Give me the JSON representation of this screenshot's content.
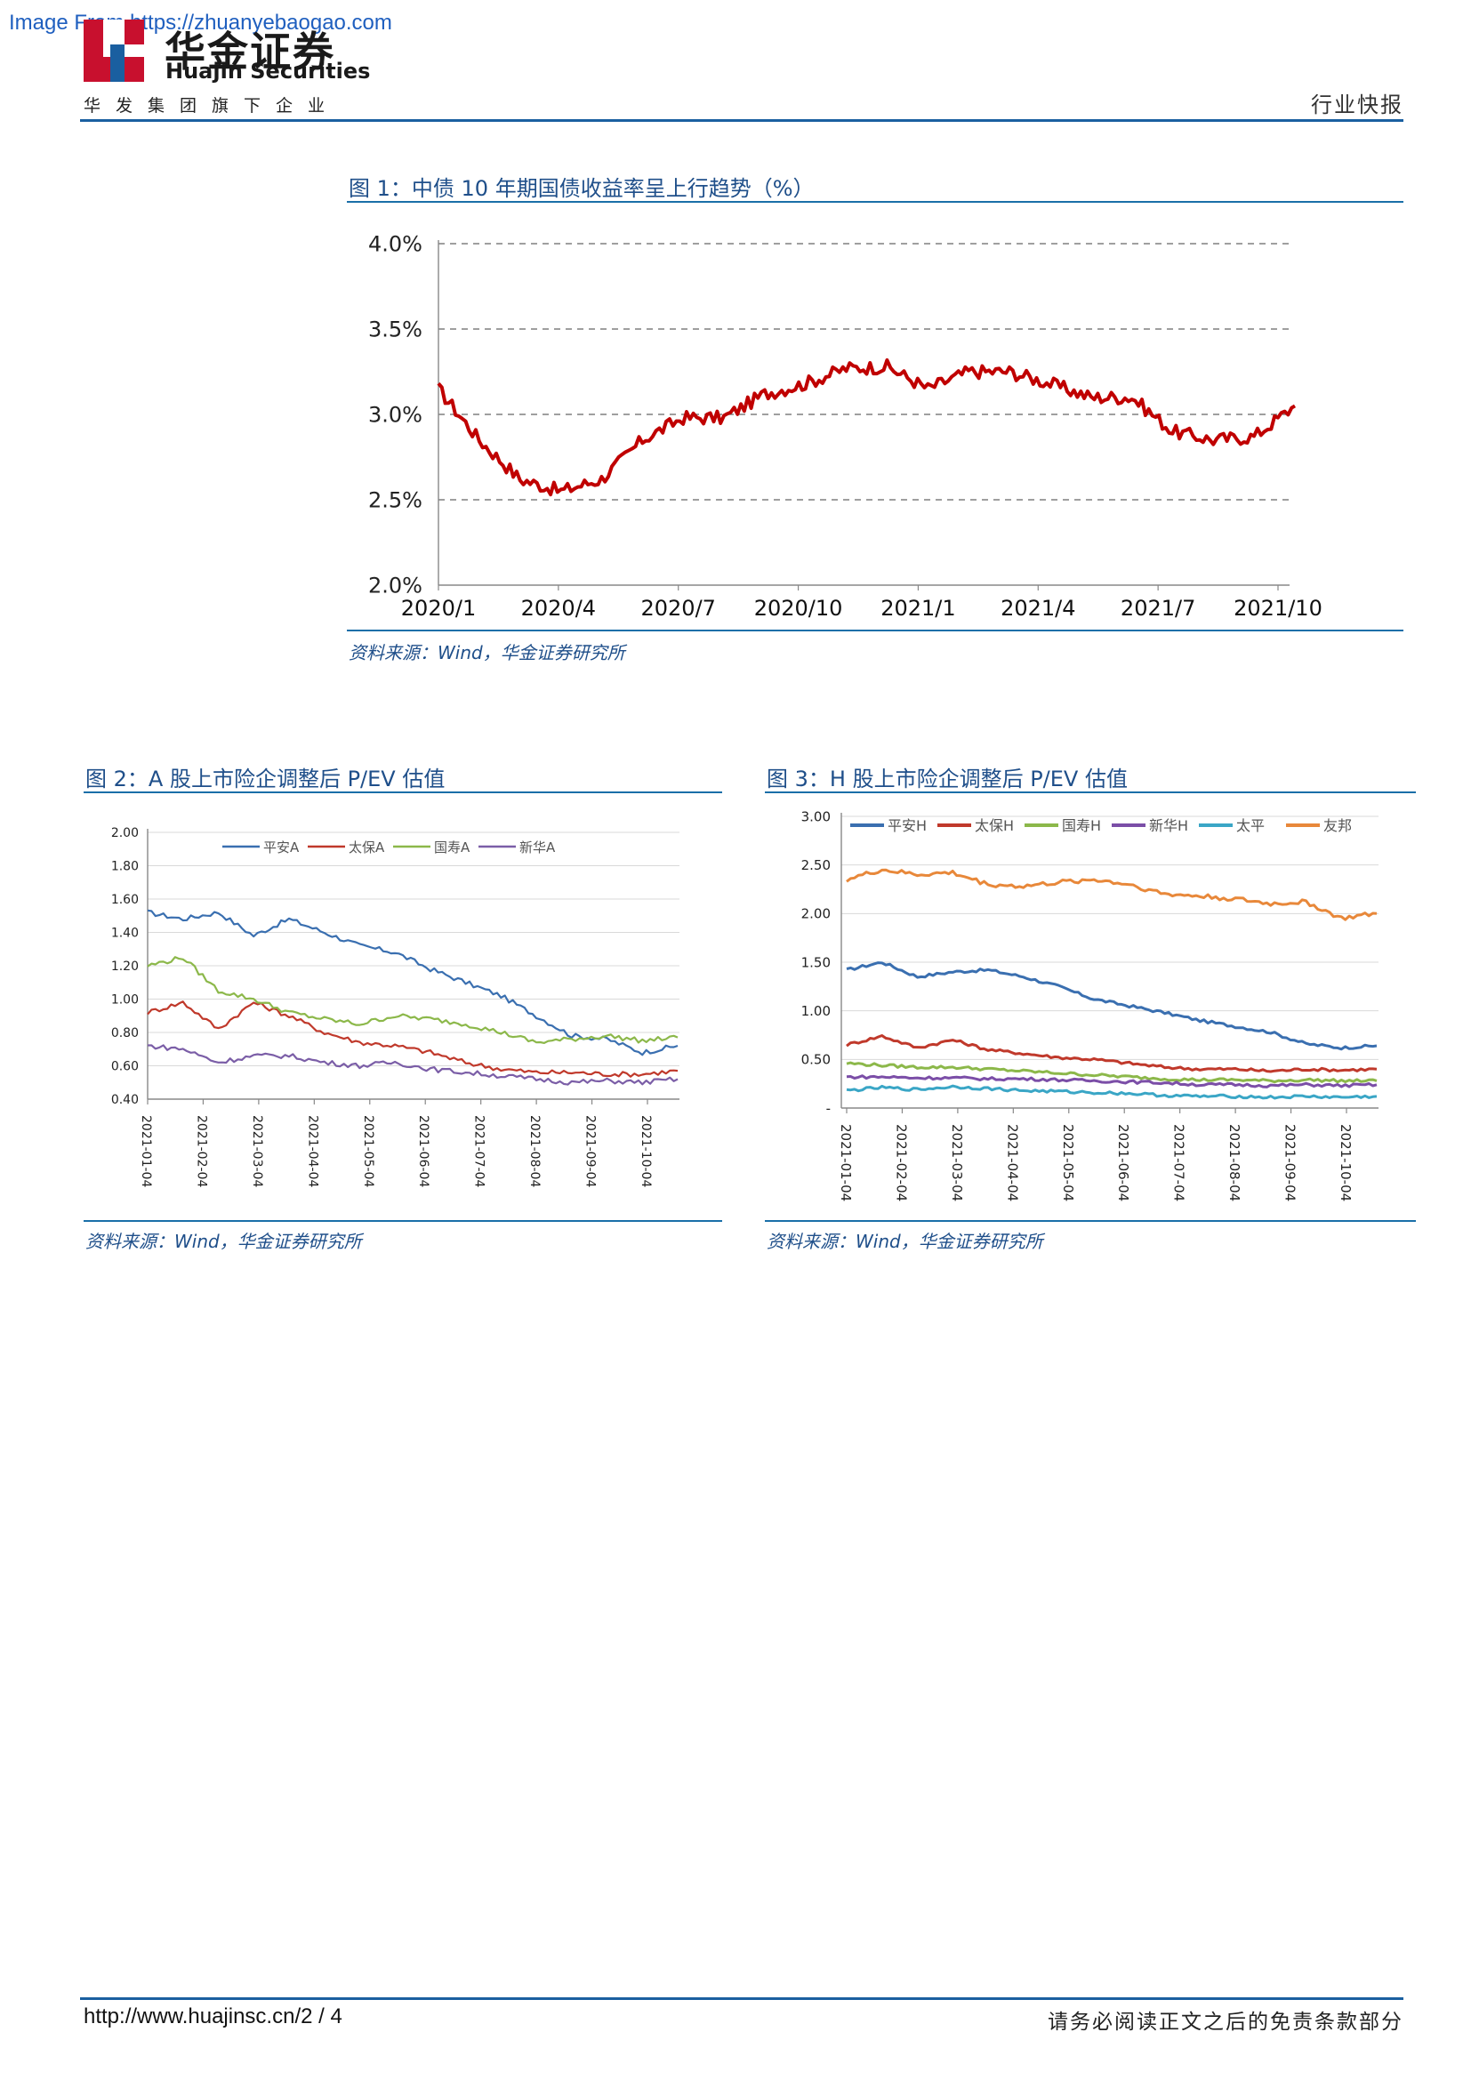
{
  "header": {
    "watermark": "Image From https://zhuanyebaogao.com",
    "logo_cn": "华金证券",
    "logo_en": "Huajin Securities",
    "logo_sub": "华发集团旗下企业",
    "report_type": "行业快报",
    "brand_red": "#c8102e",
    "brand_blue": "#1a5fa0"
  },
  "figures": {
    "fig1": {
      "title": "图 1：中债 10 年期国债收益率呈上行趋势（%）",
      "source": "资料来源：Wind，华金证券研究所"
    },
    "fig2": {
      "title": "图 2：A 股上市险企调整后 P/EV 估值",
      "source": "资料来源：Wind，华金证券研究所"
    },
    "fig3": {
      "title": "图 3：H 股上市险企调整后 P/EV 估值",
      "source": "资料来源：Wind，华金证券研究所"
    }
  },
  "chart_data": [
    {
      "id": "fig1",
      "type": "line",
      "x_ticks": [
        "2020/1",
        "2020/4",
        "2020/7",
        "2020/10",
        "2021/1",
        "2021/4",
        "2021/7",
        "2021/10"
      ],
      "y_ticks": [
        "2.0%",
        "2.5%",
        "3.0%",
        "3.5%",
        "4.0%"
      ],
      "ylim": [
        2.0,
        4.0
      ],
      "grid": "horizontal dashed",
      "series": [
        {
          "color": "#c00000",
          "x": [
            "2020-01",
            "2020-02",
            "2020-03",
            "2020-04",
            "2020-05",
            "2020-06",
            "2020-07",
            "2020-08",
            "2020-09",
            "2020-10",
            "2020-11",
            "2020-12",
            "2021-01",
            "2021-02",
            "2021-03",
            "2021-04",
            "2021-05",
            "2021-06",
            "2021-07",
            "2021-08",
            "2021-09",
            "2021-10"
          ],
          "values": [
            3.15,
            2.85,
            2.62,
            2.55,
            2.62,
            2.85,
            2.98,
            2.98,
            3.12,
            3.18,
            3.27,
            3.28,
            3.15,
            3.25,
            3.25,
            3.18,
            3.1,
            3.1,
            2.9,
            2.85,
            2.87,
            3.05
          ]
        }
      ]
    },
    {
      "id": "fig2",
      "type": "line",
      "x_ticks": [
        "2021-01-04",
        "2021-02-04",
        "2021-03-04",
        "2021-04-04",
        "2021-05-04",
        "2021-06-04",
        "2021-07-04",
        "2021-08-04",
        "2021-09-04",
        "2021-10-04"
      ],
      "y_ticks": [
        "0.40",
        "0.60",
        "0.80",
        "1.00",
        "1.20",
        "1.40",
        "1.60",
        "1.80",
        "2.00"
      ],
      "ylim": [
        0.4,
        2.0
      ],
      "legend": "top",
      "series": [
        {
          "name": "平安A",
          "color": "#3a6fb0",
          "values": [
            1.52,
            1.48,
            1.52,
            1.38,
            1.48,
            1.4,
            1.32,
            1.28,
            1.18,
            1.1,
            1.02,
            0.9,
            0.78,
            0.76,
            0.68,
            0.72
          ]
        },
        {
          "name": "太保A",
          "color": "#c0392b",
          "values": [
            0.92,
            0.98,
            0.82,
            0.98,
            0.9,
            0.8,
            0.74,
            0.72,
            0.68,
            0.62,
            0.58,
            0.56,
            0.56,
            0.55,
            0.55,
            0.57
          ]
        },
        {
          "name": "国寿A",
          "color": "#8cb84a",
          "values": [
            1.2,
            1.25,
            1.05,
            1.0,
            0.92,
            0.88,
            0.85,
            0.9,
            0.88,
            0.85,
            0.8,
            0.74,
            0.76,
            0.78,
            0.75,
            0.77
          ]
        },
        {
          "name": "新华A",
          "color": "#7b5ea7",
          "values": [
            0.72,
            0.7,
            0.62,
            0.66,
            0.66,
            0.62,
            0.6,
            0.62,
            0.58,
            0.56,
            0.54,
            0.52,
            0.5,
            0.51,
            0.5,
            0.52
          ]
        }
      ]
    },
    {
      "id": "fig3",
      "type": "line",
      "x_ticks": [
        "2021-01-04",
        "2021-02-04",
        "2021-03-04",
        "2021-04-04",
        "2021-05-04",
        "2021-06-04",
        "2021-07-04",
        "2021-08-04",
        "2021-09-04",
        "2021-10-04"
      ],
      "y_ticks": [
        "-",
        "0.50",
        "1.00",
        "1.50",
        "2.00",
        "2.50",
        "3.00"
      ],
      "ylim": [
        0,
        3.0
      ],
      "legend": "top",
      "series": [
        {
          "name": "平安H",
          "color": "#3a6fb0",
          "values": [
            1.42,
            1.5,
            1.35,
            1.4,
            1.42,
            1.35,
            1.25,
            1.12,
            1.05,
            0.98,
            0.9,
            0.84,
            0.78,
            0.66,
            0.62,
            0.64
          ]
        },
        {
          "name": "太保H",
          "color": "#c0392b",
          "values": [
            0.65,
            0.74,
            0.62,
            0.7,
            0.6,
            0.56,
            0.52,
            0.5,
            0.46,
            0.42,
            0.4,
            0.4,
            0.38,
            0.4,
            0.39,
            0.4
          ]
        },
        {
          "name": "国寿H",
          "color": "#8cb84a",
          "values": [
            0.46,
            0.44,
            0.42,
            0.42,
            0.4,
            0.38,
            0.36,
            0.34,
            0.32,
            0.3,
            0.29,
            0.29,
            0.28,
            0.29,
            0.28,
            0.28
          ]
        },
        {
          "name": "新华H",
          "color": "#7b4ea7",
          "values": [
            0.32,
            0.32,
            0.31,
            0.31,
            0.3,
            0.3,
            0.29,
            0.28,
            0.27,
            0.26,
            0.24,
            0.24,
            0.23,
            0.24,
            0.23,
            0.24
          ]
        },
        {
          "name": "太平",
          "color": "#3aa6c6",
          "values": [
            0.18,
            0.21,
            0.19,
            0.22,
            0.2,
            0.18,
            0.17,
            0.16,
            0.15,
            0.13,
            0.12,
            0.12,
            0.11,
            0.12,
            0.11,
            0.12
          ]
        },
        {
          "name": "友邦",
          "color": "#e8883a",
          "values": [
            2.35,
            2.45,
            2.4,
            2.42,
            2.3,
            2.28,
            2.32,
            2.35,
            2.3,
            2.2,
            2.18,
            2.15,
            2.1,
            2.12,
            1.95,
            2.0
          ]
        }
      ]
    }
  ],
  "footer": {
    "url": "http://www.huajinsc.cn/2 / 4",
    "note": "请务必阅读正文之后的免责条款部分"
  }
}
